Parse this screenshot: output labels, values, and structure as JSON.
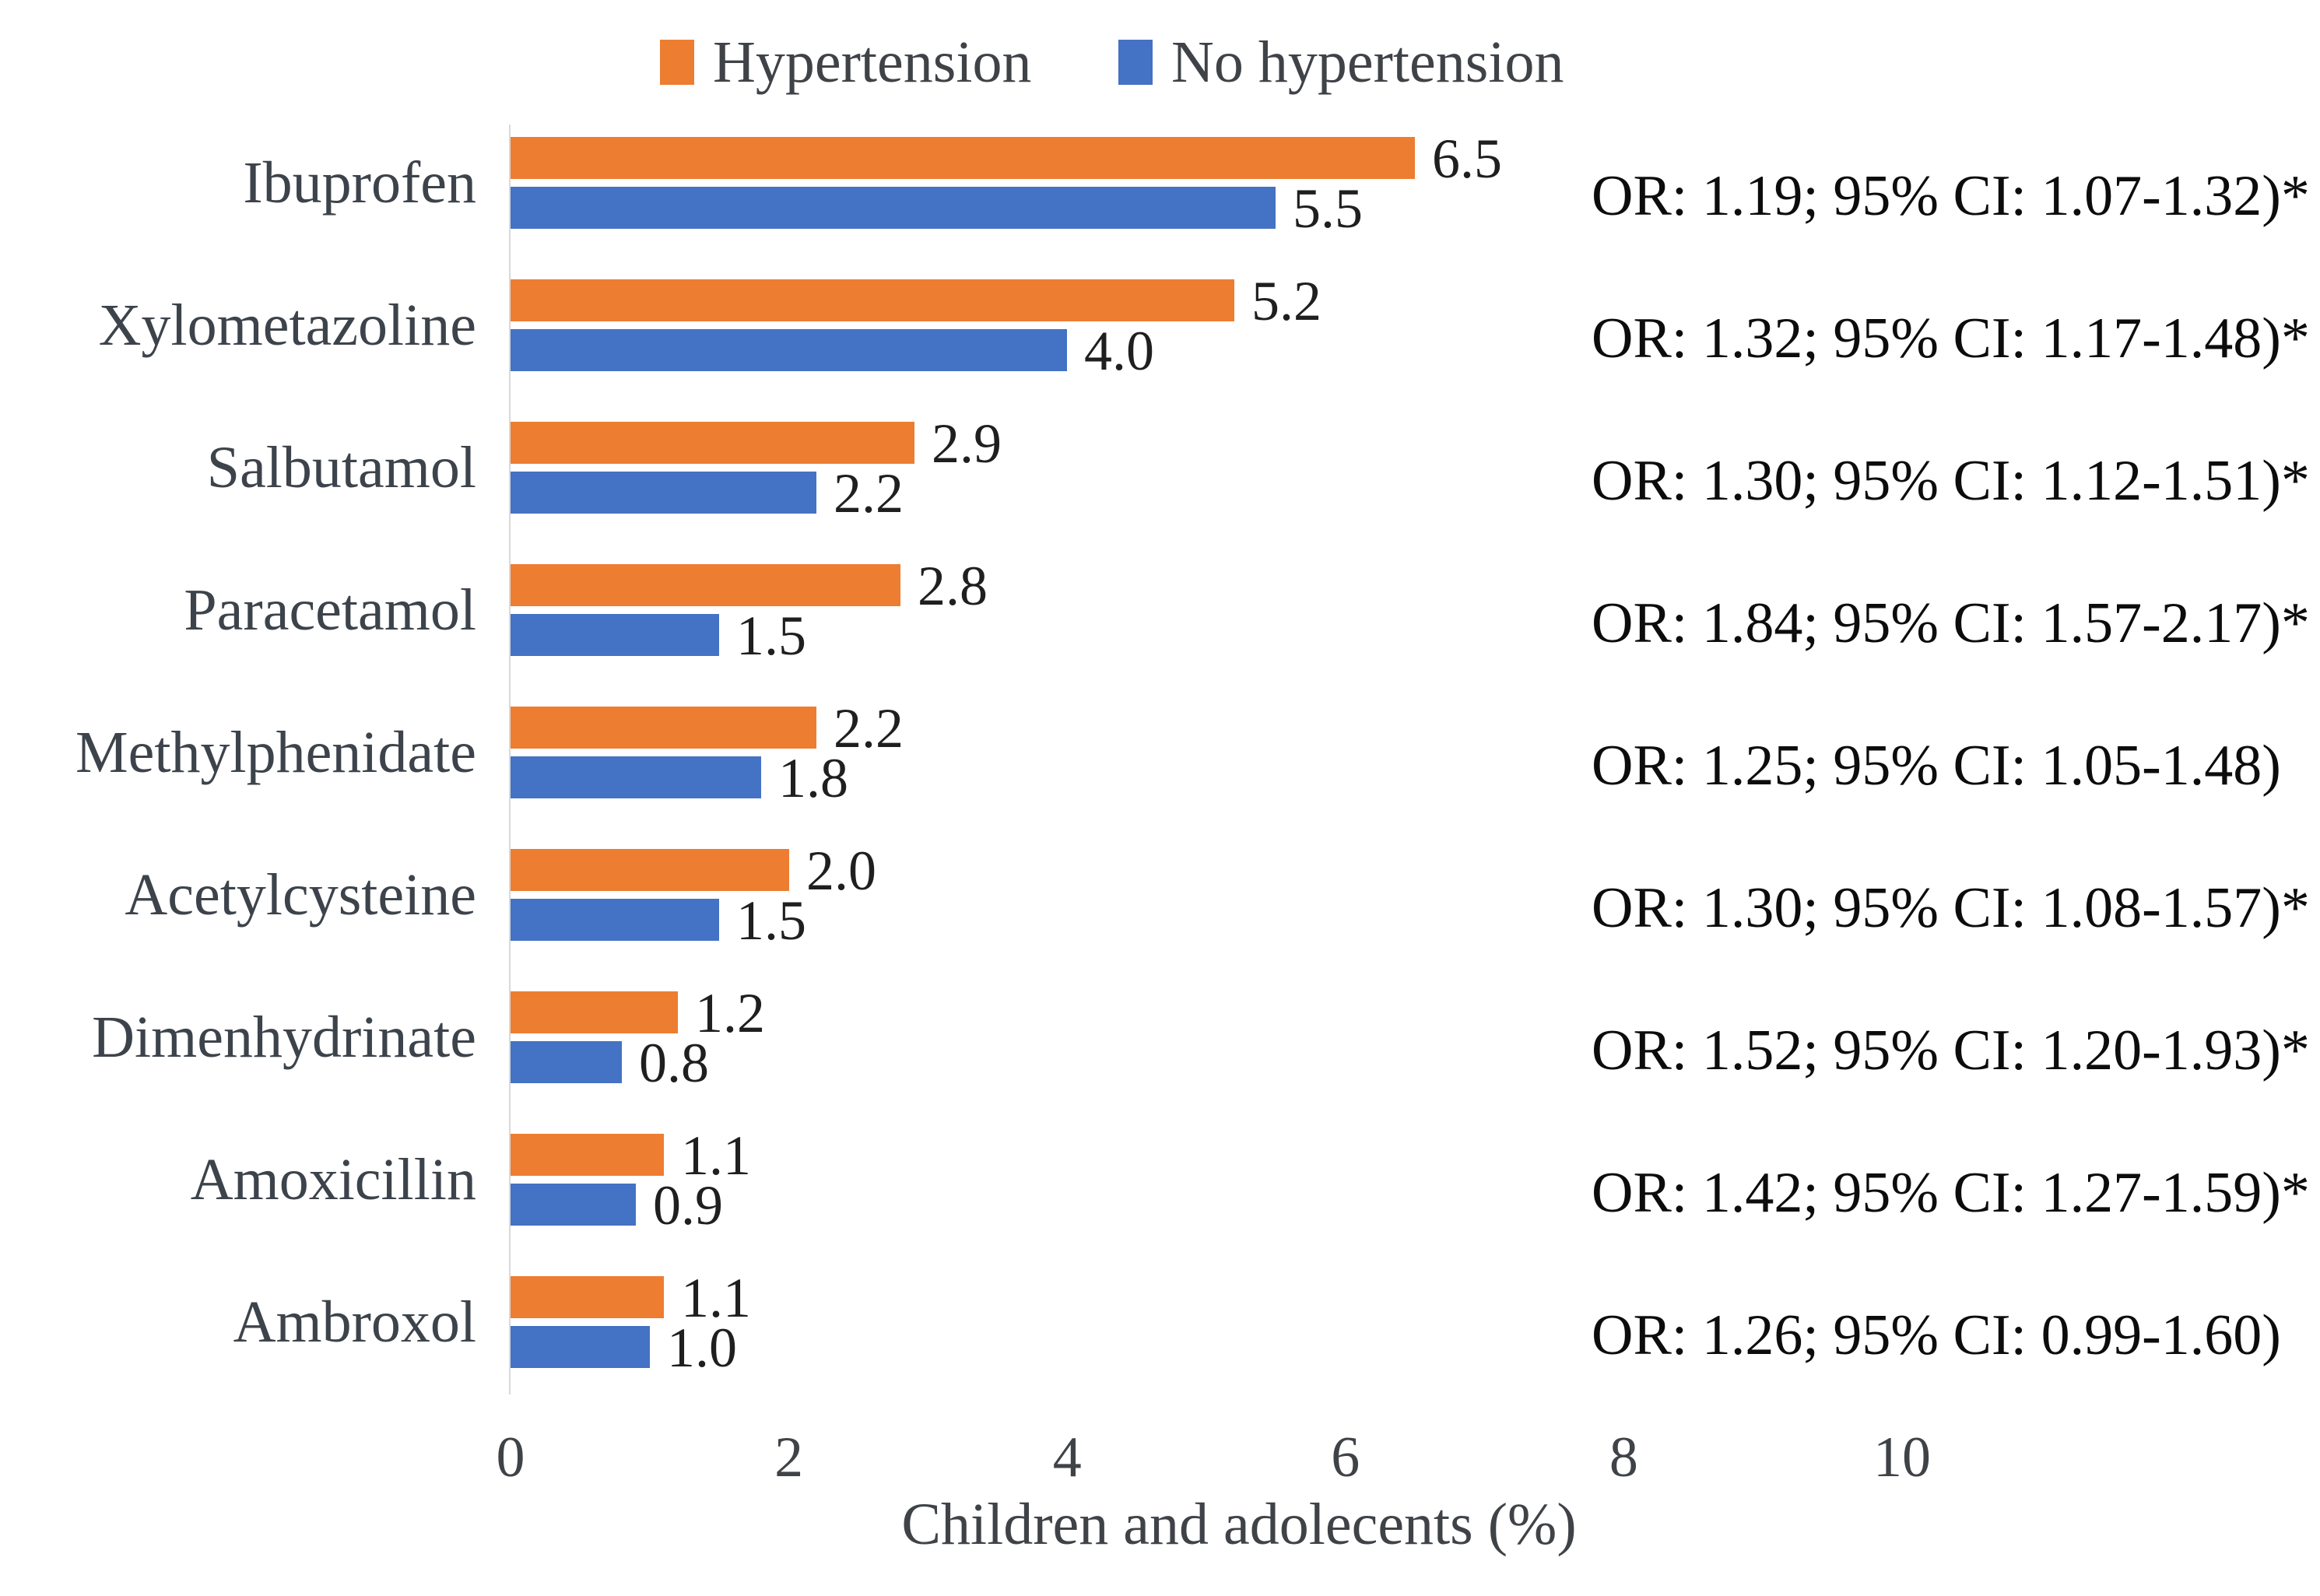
{
  "legend": {
    "items": [
      {
        "label": "Hypertension",
        "color": "#ED7D31"
      },
      {
        "label": "No hypertension",
        "color": "#4472C4"
      }
    ]
  },
  "chart_data": {
    "type": "bar",
    "orientation": "horizontal",
    "title": "",
    "xlabel": "Children and adolecents (%)",
    "ylabel": "",
    "xlim": [
      0,
      10
    ],
    "x_ticks": [
      0,
      2,
      4,
      6,
      8,
      10
    ],
    "grid": "off",
    "legend_position": "top",
    "value_labels": "one-decimal",
    "categories": [
      "Ibuprofen",
      "Xylometazoline",
      "Salbutamol",
      "Paracetamol",
      "Methylphenidate",
      "Acetylcysteine",
      "Dimenhydrinate",
      "Amoxicillin",
      "Ambroxol"
    ],
    "series": [
      {
        "name": "Hypertension",
        "color": "#ED7D31",
        "values": [
          6.5,
          5.2,
          2.9,
          2.8,
          2.2,
          2.0,
          1.2,
          1.1,
          1.1
        ]
      },
      {
        "name": "No hypertension",
        "color": "#4472C4",
        "values": [
          5.5,
          4.0,
          2.2,
          1.5,
          1.8,
          1.5,
          0.8,
          0.9,
          1.0
        ]
      }
    ],
    "annotations": [
      "OR: 1.19; 95% CI: 1.07-1.32)*",
      "OR: 1.32; 95% CI: 1.17-1.48)*",
      "OR: 1.30; 95% CI: 1.12-1.51)*",
      "OR: 1.84; 95% CI: 1.57-2.17)*",
      "OR: 1.25; 95% CI: 1.05-1.48)",
      "OR: 1.30; 95% CI: 1.08-1.57)*",
      "OR: 1.52; 95% CI: 1.20-1.93)*",
      "OR: 1.42; 95% CI: 1.27-1.59)*",
      "OR: 1.26; 95% CI: 0.99-1.60)"
    ]
  }
}
